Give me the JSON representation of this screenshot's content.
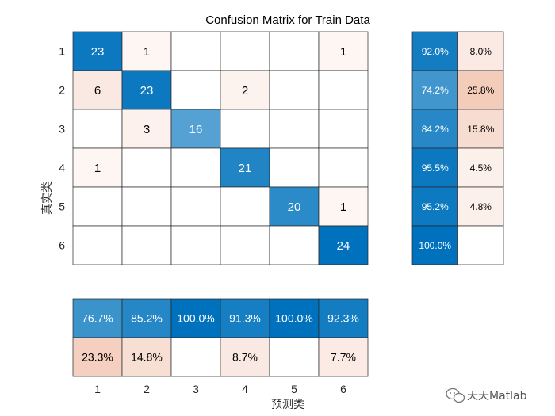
{
  "chart_data": {
    "type": "heatmap",
    "title": "Confusion Matrix for Train Data",
    "xlabel": "预测类",
    "ylabel": "真实类",
    "classes": [
      "1",
      "2",
      "3",
      "4",
      "5",
      "6"
    ],
    "matrix": [
      [
        23,
        1,
        null,
        null,
        null,
        1
      ],
      [
        6,
        23,
        null,
        2,
        null,
        null
      ],
      [
        null,
        3,
        16,
        null,
        null,
        null
      ],
      [
        1,
        null,
        null,
        21,
        null,
        null
      ],
      [
        null,
        null,
        null,
        null,
        20,
        1
      ],
      [
        null,
        null,
        null,
        null,
        null,
        24
      ]
    ],
    "row_summary": {
      "correct_pct": [
        "92.0%",
        "74.2%",
        "84.2%",
        "95.5%",
        "95.2%",
        "100.0%"
      ],
      "incorrect_pct": [
        "8.0%",
        "25.8%",
        "15.8%",
        "4.5%",
        "4.8%",
        ""
      ]
    },
    "column_summary": {
      "correct_pct": [
        "76.7%",
        "85.2%",
        "100.0%",
        "91.3%",
        "100.0%",
        "92.3%"
      ],
      "incorrect_pct": [
        "23.3%",
        "14.8%",
        "",
        "8.7%",
        "",
        "7.7%"
      ]
    },
    "colors": {
      "correct": "#0072bd",
      "incorrect": "#d95319",
      "grid": "#262626"
    }
  },
  "watermark": {
    "text": "天天Matlab",
    "icon": "wechat-icon"
  }
}
